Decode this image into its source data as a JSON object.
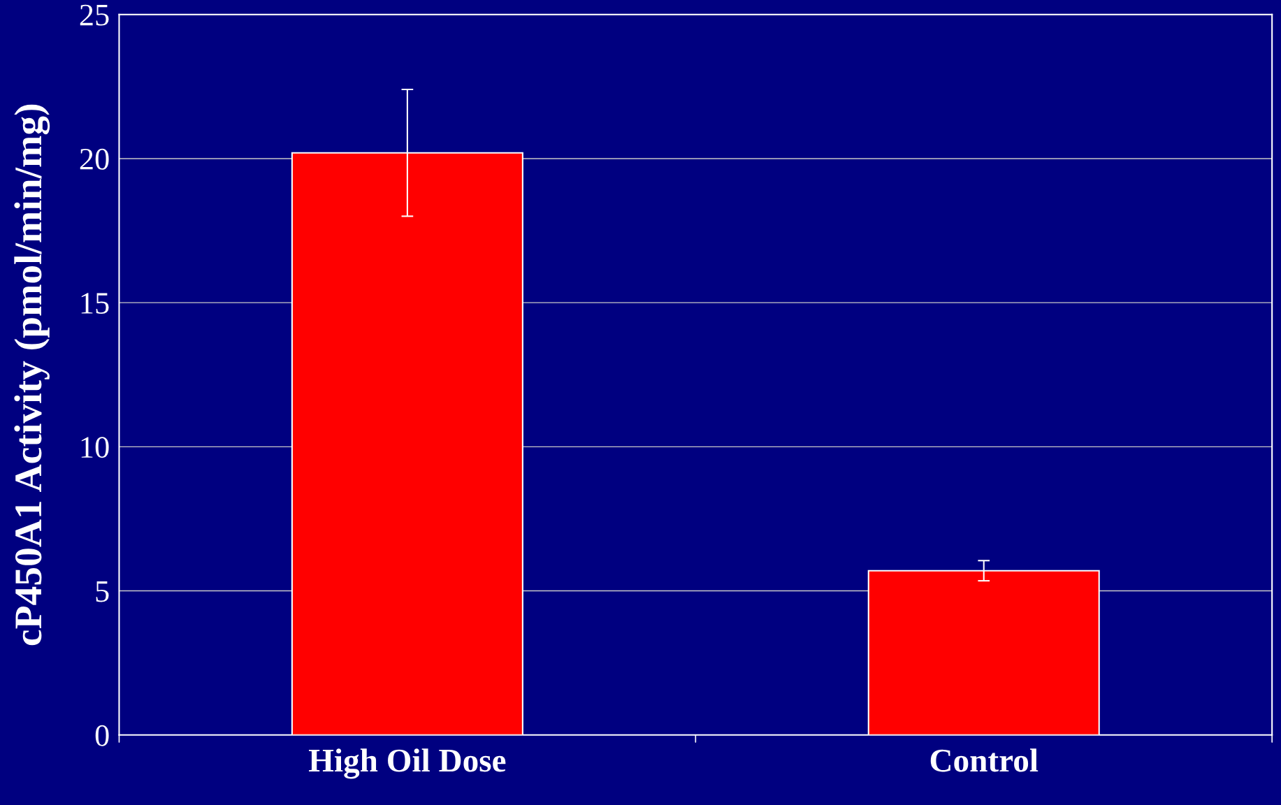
{
  "chart_data": {
    "type": "bar",
    "ylabel": "cP450A1 Activity (pmol/min/mg)",
    "categories": [
      "High Oil Dose",
      "Control"
    ],
    "values": [
      20.2,
      5.7
    ],
    "errors": [
      [
        18.0,
        22.4
      ],
      [
        5.35,
        6.05
      ]
    ],
    "color": "#ff0000",
    "ylim": [
      0,
      25
    ],
    "yticks": [
      0,
      5,
      10,
      15,
      20,
      25
    ],
    "grid": "y"
  }
}
